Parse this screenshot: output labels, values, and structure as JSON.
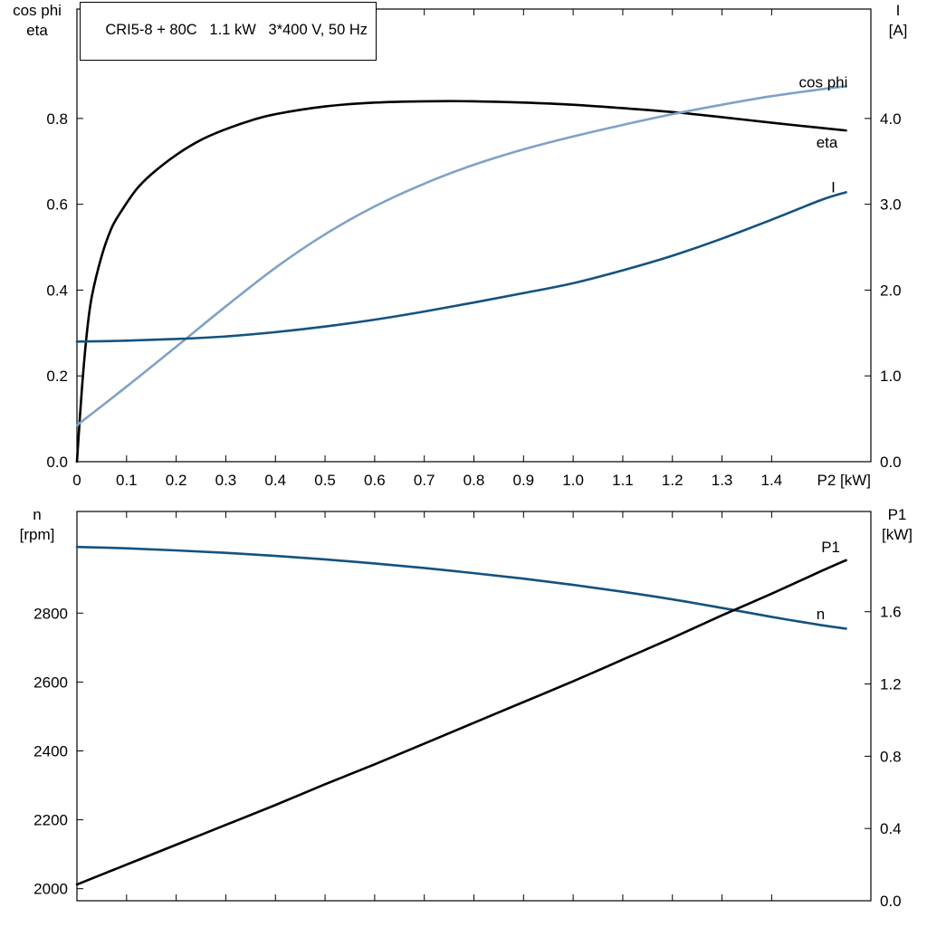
{
  "title_box": "CRI5-8 + 80C   1.1 kW   3*400 V, 50 Hz",
  "colors": {
    "black_curve": "#000000",
    "light_blue_curve": "#7fa2c6",
    "dark_blue_curve": "#14527f",
    "frame": "#000000",
    "background": "#ffffff"
  },
  "chart_data": [
    {
      "type": "line",
      "name": "top-performance",
      "title": "CRI5-8 + 80C   1.1 kW   3*400 V, 50 Hz",
      "x_axis": {
        "lim": [
          0,
          1.6
        ],
        "tick_values": [
          0,
          0.1,
          0.2,
          0.3,
          0.4,
          0.5,
          0.6,
          0.7,
          0.8,
          0.9,
          1.0,
          1.1,
          1.2,
          1.3,
          1.4
        ],
        "tick_labels": [
          "0",
          "0.1",
          "0.2",
          "0.3",
          "0.4",
          "0.5",
          "0.6",
          "0.7",
          "0.8",
          "0.9",
          "1.0",
          "1.1",
          "1.2",
          "1.3",
          "1.4"
        ],
        "end_label": "P2 [kW]",
        "show_labels": true
      },
      "left_axis": {
        "lim": [
          0,
          1.055
        ],
        "tick_values": [
          0,
          0.2,
          0.4,
          0.6,
          0.8
        ],
        "tick_labels": [
          "0.0",
          "0.2",
          "0.4",
          "0.6",
          "0.8"
        ],
        "title_lines": [
          "cos phi",
          "eta"
        ]
      },
      "right_axis": {
        "lim": [
          0,
          5.275
        ],
        "tick_values": [
          0,
          1,
          2,
          3,
          4
        ],
        "tick_labels": [
          "0.0",
          "1.0",
          "2.0",
          "3.0",
          "4.0"
        ],
        "title_lines": [
          "I",
          "[A]"
        ]
      },
      "series": [
        {
          "name": "eta",
          "label": "eta",
          "axis": "left",
          "color": "#000000",
          "label_x": 1.49,
          "label_y": 0.732,
          "x": [
            0,
            0.01,
            0.02,
            0.03,
            0.05,
            0.07,
            0.09,
            0.12,
            0.15,
            0.2,
            0.25,
            0.3,
            0.35,
            0.4,
            0.5,
            0.6,
            0.7,
            0.8,
            0.9,
            1.0,
            1.1,
            1.2,
            1.3,
            1.4,
            1.5,
            1.55
          ],
          "y": [
            0,
            0.17,
            0.3,
            0.385,
            0.48,
            0.545,
            0.585,
            0.635,
            0.67,
            0.715,
            0.75,
            0.775,
            0.795,
            0.81,
            0.828,
            0.837,
            0.84,
            0.84,
            0.837,
            0.832,
            0.824,
            0.815,
            0.803,
            0.79,
            0.778,
            0.772
          ]
        },
        {
          "name": "cos-phi",
          "label": "cos phi",
          "axis": "left",
          "color": "#7fa2c6",
          "label_x": 1.455,
          "label_y": 0.872,
          "x": [
            0,
            0.1,
            0.2,
            0.3,
            0.4,
            0.5,
            0.6,
            0.7,
            0.8,
            0.9,
            1.0,
            1.1,
            1.2,
            1.3,
            1.4,
            1.5,
            1.55
          ],
          "y": [
            0.085,
            0.175,
            0.268,
            0.362,
            0.452,
            0.53,
            0.595,
            0.648,
            0.692,
            0.728,
            0.758,
            0.785,
            0.81,
            0.832,
            0.852,
            0.868,
            0.875
          ]
        },
        {
          "name": "current",
          "label": "I",
          "axis": "right",
          "color": "#14527f",
          "label_x": 1.52,
          "label_y": 3.14,
          "x": [
            0,
            0.1,
            0.2,
            0.3,
            0.4,
            0.5,
            0.6,
            0.7,
            0.8,
            0.9,
            1.0,
            1.1,
            1.2,
            1.3,
            1.4,
            1.5,
            1.55
          ],
          "y": [
            1.4,
            1.41,
            1.43,
            1.46,
            1.51,
            1.575,
            1.655,
            1.75,
            1.855,
            1.965,
            2.08,
            2.23,
            2.4,
            2.6,
            2.82,
            3.05,
            3.14
          ]
        }
      ]
    },
    {
      "type": "line",
      "name": "bottom-speed-power",
      "title": "",
      "x_axis": {
        "lim": [
          0,
          1.6
        ],
        "tick_values": [
          0,
          0.1,
          0.2,
          0.3,
          0.4,
          0.5,
          0.6,
          0.7,
          0.8,
          0.9,
          1.0,
          1.1,
          1.2,
          1.3,
          1.4
        ],
        "tick_labels": [
          "0",
          "0.1",
          "0.2",
          "0.3",
          "0.4",
          "0.5",
          "0.6",
          "0.7",
          "0.8",
          "0.9",
          "1.0",
          "1.1",
          "1.2",
          "1.3",
          "1.4"
        ],
        "end_label": "",
        "show_labels": false
      },
      "left_axis": {
        "lim": [
          1965,
          3095
        ],
        "tick_values": [
          2000,
          2200,
          2400,
          2600,
          2800
        ],
        "tick_labels": [
          "2000",
          "2200",
          "2400",
          "2600",
          "2800"
        ],
        "title_lines": [
          "n",
          "[rpm]"
        ]
      },
      "right_axis": {
        "lim": [
          0,
          2.155
        ],
        "tick_values": [
          0,
          0.4,
          0.8,
          1.2,
          1.6
        ],
        "tick_labels": [
          "0.0",
          "0.4",
          "0.8",
          "1.2",
          "1.6"
        ],
        "title_lines": [
          "P1",
          "[kW]"
        ]
      },
      "series": [
        {
          "name": "speed",
          "label": "n",
          "axis": "left",
          "color": "#14527f",
          "label_x": 1.49,
          "label_y": 2782,
          "x": [
            0,
            0.1,
            0.2,
            0.3,
            0.4,
            0.5,
            0.6,
            0.7,
            0.8,
            0.9,
            1.0,
            1.1,
            1.2,
            1.3,
            1.4,
            1.5,
            1.55
          ],
          "y": [
            2992,
            2988,
            2982,
            2975,
            2966,
            2956,
            2944,
            2931,
            2916,
            2900,
            2882,
            2862,
            2840,
            2815,
            2789,
            2765,
            2755
          ]
        },
        {
          "name": "p1",
          "label": "P1",
          "axis": "right",
          "color": "#000000",
          "label_x": 1.5,
          "label_y": 1.93,
          "x": [
            0,
            0.1,
            0.2,
            0.3,
            0.4,
            0.5,
            0.6,
            0.7,
            0.8,
            0.9,
            1.0,
            1.1,
            1.2,
            1.3,
            1.4,
            1.5,
            1.55
          ],
          "y": [
            0.09,
            0.2,
            0.31,
            0.42,
            0.53,
            0.645,
            0.755,
            0.87,
            0.985,
            1.1,
            1.215,
            1.335,
            1.455,
            1.58,
            1.7,
            1.825,
            1.885
          ]
        }
      ]
    }
  ]
}
